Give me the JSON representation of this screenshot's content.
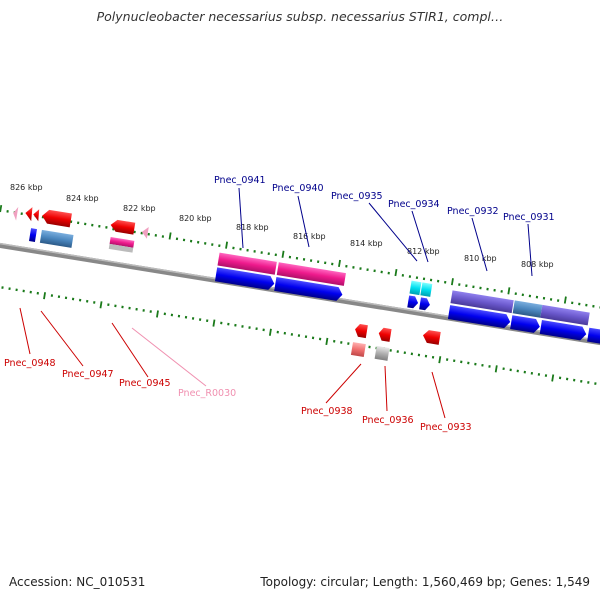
{
  "title": "Polynucleobacter necessarius subsp. necessarius STIR1, compl…",
  "footer": {
    "accession": "Accession: NC_010531",
    "summary": "Topology: circular; Length: 1,560,469 bp; Genes: 1,549"
  },
  "colors": {
    "forward_label": "#00008B",
    "reverse_label": "#CC0000",
    "rna_label": "#F090B0",
    "backbone": "#808080",
    "tick": "#1A7A1A"
  },
  "scale_labels": [
    "826 kbp",
    "824 kbp",
    "822 kbp",
    "820 kbp",
    "818 kbp",
    "816 kbp",
    "814 kbp",
    "812 kbp",
    "810 kbp",
    "808 kbp"
  ],
  "forward_genes": [
    "Pnec_0941",
    "Pnec_0940",
    "Pnec_0935",
    "Pnec_0934",
    "Pnec_0932",
    "Pnec_0931"
  ],
  "reverse_genes": [
    "Pnec_0948",
    "Pnec_0947",
    "Pnec_0945",
    "Pnec_R0030",
    "Pnec_0938",
    "Pnec_0936",
    "Pnec_0933"
  ]
}
